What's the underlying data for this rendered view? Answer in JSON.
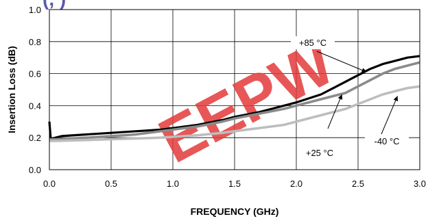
{
  "partial_title": "(, )",
  "watermark": "EEPW",
  "chart_data": {
    "type": "line",
    "title": "",
    "xlabel": "FREQUENCY (GHz)",
    "ylabel": "Insertion Loss (dB)",
    "xlim": [
      0,
      3
    ],
    "ylim": [
      0,
      1
    ],
    "x_ticks": [
      "0.0",
      "0.5",
      "1.0",
      "1.5",
      "2.0",
      "2.5",
      "3.0"
    ],
    "y_ticks": [
      "0.0",
      "0.2",
      "0.4",
      "0.6",
      "0.8",
      "1.0"
    ],
    "grid": true,
    "series": [
      {
        "name": "+85 °C",
        "color": "#000000",
        "x": [
          0.0,
          0.01,
          0.02,
          0.05,
          0.1,
          0.3,
          0.5,
          0.7,
          0.9,
          1.0,
          1.2,
          1.4,
          1.5,
          1.7,
          1.9,
          2.0,
          2.2,
          2.3,
          2.4,
          2.5,
          2.6,
          2.7,
          2.8,
          2.9,
          3.0
        ],
        "y": [
          0.3,
          0.2,
          0.195,
          0.2,
          0.21,
          0.22,
          0.23,
          0.24,
          0.25,
          0.26,
          0.28,
          0.31,
          0.33,
          0.36,
          0.4,
          0.42,
          0.47,
          0.51,
          0.55,
          0.59,
          0.63,
          0.66,
          0.68,
          0.7,
          0.71
        ]
      },
      {
        "name": "+25 °C",
        "color": "#8a8a8a",
        "x": [
          0.0,
          0.05,
          0.3,
          0.5,
          0.7,
          0.9,
          1.0,
          1.2,
          1.4,
          1.5,
          1.7,
          1.9,
          2.0,
          2.2,
          2.4,
          2.5,
          2.6,
          2.7,
          2.8,
          2.9,
          3.0
        ],
        "y": [
          0.19,
          0.19,
          0.2,
          0.21,
          0.22,
          0.24,
          0.25,
          0.27,
          0.3,
          0.32,
          0.35,
          0.38,
          0.4,
          0.44,
          0.48,
          0.52,
          0.56,
          0.6,
          0.63,
          0.65,
          0.67
        ]
      },
      {
        "name": "-40 °C",
        "color": "#bdbdbd",
        "x": [
          0.0,
          0.05,
          0.3,
          0.5,
          0.7,
          0.9,
          1.0,
          1.2,
          1.4,
          1.5,
          1.7,
          1.9,
          2.0,
          2.2,
          2.4,
          2.5,
          2.6,
          2.7,
          2.8,
          2.9,
          3.0
        ],
        "y": [
          0.18,
          0.18,
          0.185,
          0.19,
          0.195,
          0.2,
          0.205,
          0.215,
          0.23,
          0.24,
          0.26,
          0.28,
          0.3,
          0.34,
          0.38,
          0.41,
          0.44,
          0.47,
          0.49,
          0.51,
          0.52
        ]
      }
    ],
    "annotations": [
      {
        "text": "+85 °C",
        "arrow_to": [
          2.57,
          0.61
        ]
      },
      {
        "text": "+25 °C",
        "arrow_to": [
          2.37,
          0.47
        ]
      },
      {
        "text": "-40 °C",
        "arrow_to": [
          2.82,
          0.46
        ]
      }
    ]
  }
}
